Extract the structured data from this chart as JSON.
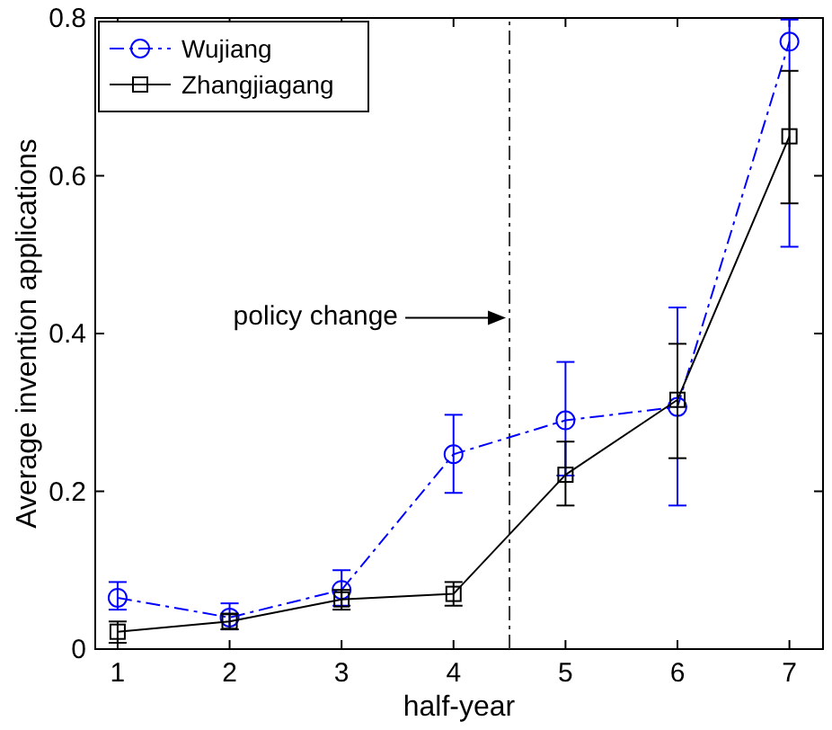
{
  "chart_data": {
    "type": "line",
    "xlabel": "half-year",
    "ylabel": "Average invention applications",
    "x": [
      1,
      2,
      3,
      4,
      5,
      6,
      7
    ],
    "xlim": [
      0.8,
      7.3
    ],
    "xticks": [
      1,
      2,
      3,
      4,
      5,
      6,
      7
    ],
    "ylim": [
      0,
      0.8
    ],
    "yticks": [
      0,
      0.2,
      0.4,
      0.6,
      0.8
    ],
    "legend": "top left",
    "series": [
      {
        "name": "Wujiang",
        "color": "#0000ff",
        "marker": "circle",
        "line_style": "dashdot",
        "values": [
          0.065,
          0.04,
          0.075,
          0.247,
          0.29,
          0.307,
          0.77
        ],
        "errors": [
          [
            0.05,
            0.085
          ],
          [
            0.025,
            0.058
          ],
          [
            0.055,
            0.1
          ],
          [
            0.198,
            0.297
          ],
          [
            0.22,
            0.364
          ],
          [
            0.182,
            0.433
          ],
          [
            0.51,
            0.798
          ]
        ]
      },
      {
        "name": "Zhangjiagang",
        "color": "#000000",
        "marker": "square",
        "line_style": "solid",
        "values": [
          0.022,
          0.035,
          0.063,
          0.07,
          0.221,
          0.316,
          0.65
        ],
        "errors": [
          [
            0.008,
            0.035
          ],
          [
            0.025,
            0.045
          ],
          [
            0.05,
            0.075
          ],
          [
            0.055,
            0.085
          ],
          [
            0.182,
            0.263
          ],
          [
            0.242,
            0.387
          ],
          [
            0.565,
            0.733
          ]
        ]
      }
    ],
    "ref_lines": [
      {
        "axis": "x",
        "value": 4.5,
        "label": null,
        "color": "#333333",
        "line_style": "dashdot"
      }
    ],
    "annotations": [
      "policy change"
    ]
  }
}
